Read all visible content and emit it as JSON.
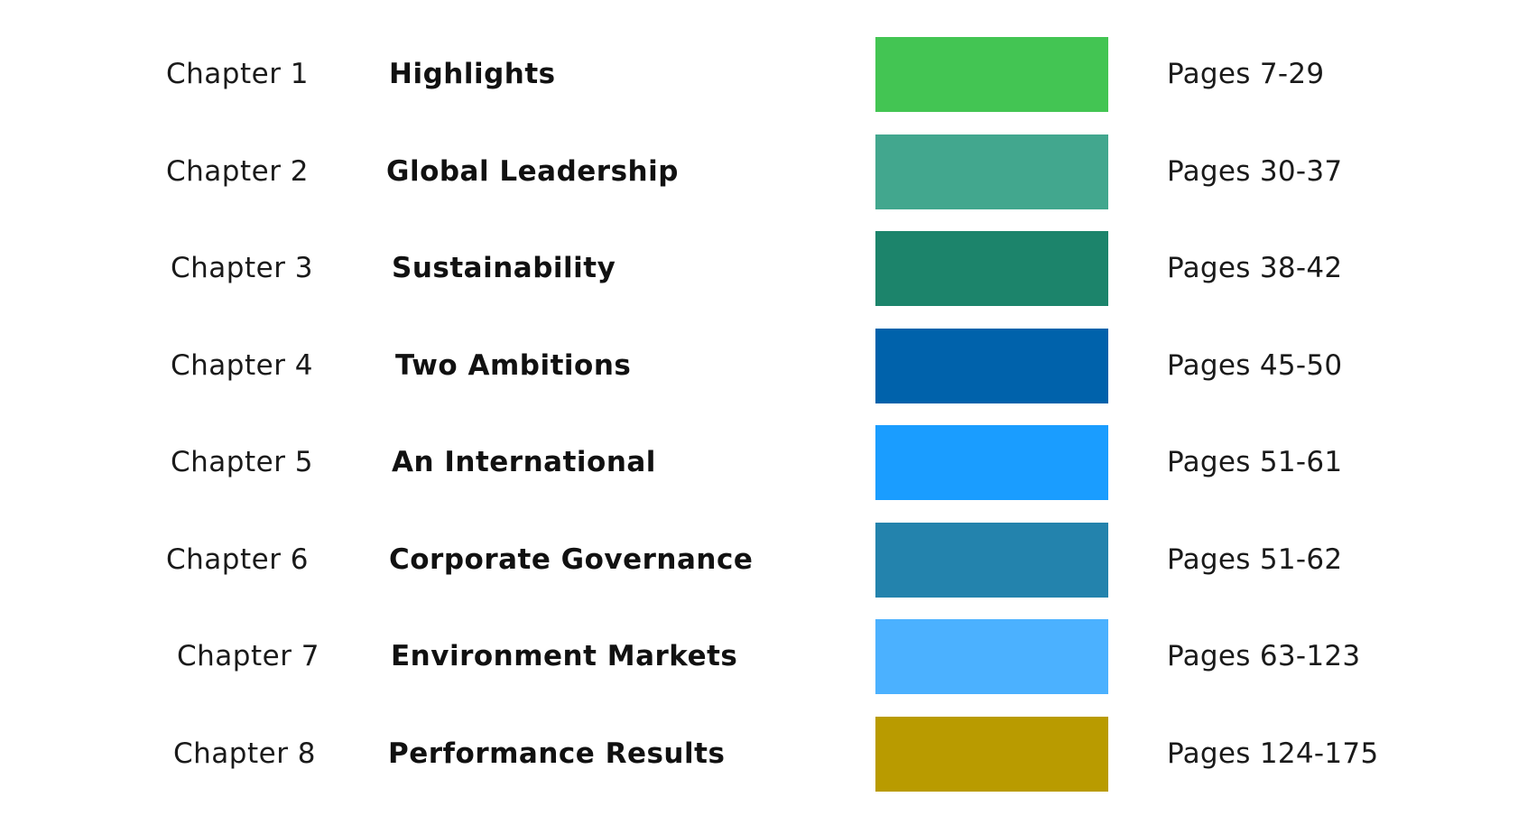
{
  "rows": [
    {
      "chapter": "Chapter 1",
      "title": "Highlights",
      "color": "#43c553",
      "pages": "Pages 7-29"
    },
    {
      "chapter": "Chapter 2",
      "title": "Global Leadership",
      "color": "#42a78e",
      "pages": "Pages 30-37"
    },
    {
      "chapter": "Chapter 3",
      "title": "Sustainability",
      "color": "#1c846b",
      "pages": "Pages 38-42"
    },
    {
      "chapter": "Chapter 4",
      "title": "Two Ambitions",
      "color": "#0062ab",
      "pages": "Pages 45-50"
    },
    {
      "chapter": "Chapter 5",
      "title": "An International",
      "color": "#1a9dff",
      "pages": "Pages 51-61"
    },
    {
      "chapter": "Chapter 6",
      "title": "Corporate Governance",
      "color": "#2383ad",
      "pages": "Pages 51-62"
    },
    {
      "chapter": "Chapter 7",
      "title": "Environment Markets",
      "color": "#4bb1ff",
      "pages": "Pages 63-123"
    },
    {
      "chapter": "Chapter 8",
      "title": "Performance Results",
      "color": "#b99b00",
      "pages": "Pages 124-175"
    }
  ]
}
